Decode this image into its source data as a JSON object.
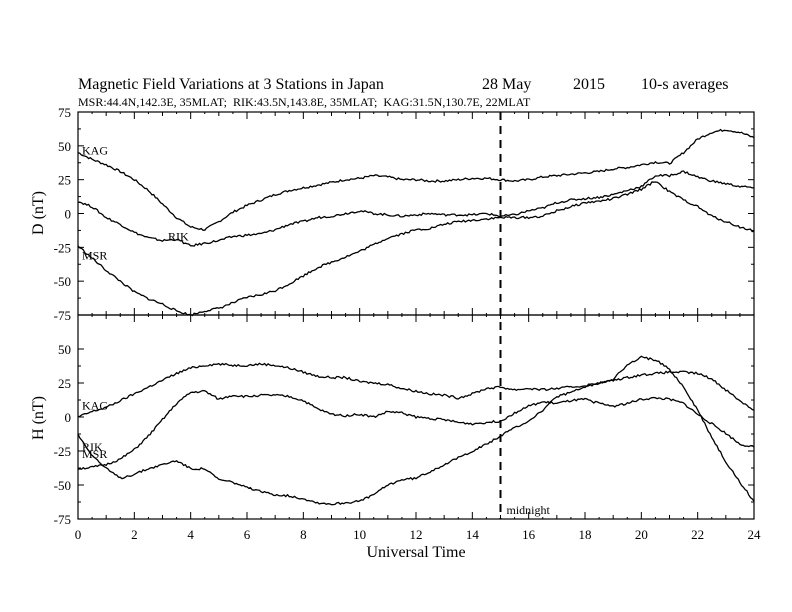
{
  "chart_data": [
    {
      "type": "line",
      "title": "Magnetic Field Variations at 3 Stations in Japan",
      "date_day": "28 May",
      "date_year": "2015",
      "averaging": "10-s averages",
      "subtitle": "MSR:44.4N,142.3E, 35MLAT;  RIK:43.5N,143.8E, 35MLAT;  KAG:31.5N,130.7E, 22MLAT",
      "ylabel": "D (nT)",
      "xlabel": "",
      "xlim": [
        0,
        24
      ],
      "ylim": [
        -75,
        75
      ],
      "yticks": [
        "75",
        "50",
        "25",
        "0",
        "-25",
        "-50",
        "-75"
      ],
      "yticks_values": [
        75,
        50,
        25,
        0,
        -25,
        -50,
        -75
      ],
      "series": [
        {
          "name": "KAG",
          "x": [
            0,
            0.5,
            1,
            1.5,
            2,
            2.5,
            3,
            3.5,
            4,
            4.5,
            5,
            5.5,
            6,
            6.5,
            7,
            7.5,
            8,
            8.5,
            9,
            9.5,
            10,
            10.5,
            11,
            11.5,
            12,
            12.5,
            13,
            13.5,
            14,
            14.5,
            15,
            15.5,
            16,
            16.5,
            17,
            17.5,
            18,
            18.5,
            19,
            19.5,
            20,
            20.5,
            21,
            21.5,
            22,
            22.5,
            23,
            23.5,
            24
          ],
          "y": [
            45,
            40,
            36,
            31,
            25,
            17,
            7,
            -3,
            -10,
            -12,
            -6,
            1,
            6,
            10,
            14,
            17,
            19,
            21,
            23,
            25,
            26,
            28,
            27,
            25,
            25,
            24,
            24,
            25,
            26,
            26,
            25,
            24,
            25,
            27,
            28,
            29,
            30,
            31,
            33,
            34,
            36,
            38,
            37,
            45,
            55,
            60,
            62,
            60,
            56
          ]
        },
        {
          "name": "RIK",
          "x": [
            0,
            0.5,
            1,
            1.5,
            2,
            2.5,
            3,
            3.5,
            4,
            4.5,
            5,
            5.5,
            6,
            6.5,
            7,
            7.5,
            8,
            8.5,
            9,
            9.5,
            10,
            10.5,
            11,
            11.5,
            12,
            12.5,
            13,
            13.5,
            14,
            14.5,
            15,
            15.5,
            16,
            16.5,
            17,
            17.5,
            18,
            18.5,
            19,
            19.5,
            20,
            20.5,
            21,
            21.5,
            22,
            22.5,
            23,
            23.5,
            24
          ],
          "y": [
            9,
            5,
            -3,
            -8,
            -14,
            -18,
            -20,
            -19,
            -24,
            -22,
            -20,
            -17,
            -16,
            -15,
            -12,
            -8,
            -6,
            -3,
            -2,
            0,
            2,
            0,
            -1,
            -2,
            -1,
            0,
            -1,
            -1,
            -1,
            0,
            -2,
            -1,
            2,
            4,
            8,
            10,
            11,
            12,
            14,
            17,
            20,
            28,
            28,
            31,
            27,
            24,
            22,
            20,
            19
          ]
        },
        {
          "name": "MSR",
          "x": [
            0,
            0.5,
            1,
            1.5,
            2,
            2.5,
            3,
            3.5,
            4,
            4.5,
            5,
            5.5,
            6,
            6.5,
            7,
            7.5,
            8,
            8.5,
            9,
            9.5,
            10,
            10.5,
            11,
            11.5,
            12,
            12.5,
            13,
            13.5,
            14,
            14.5,
            15,
            15.5,
            16,
            16.5,
            17,
            17.5,
            18,
            18.5,
            19,
            19.5,
            20,
            20.5,
            21,
            21.5,
            22,
            22.5,
            23,
            23.5,
            24
          ],
          "y": [
            -24,
            -33,
            -42,
            -50,
            -58,
            -63,
            -67,
            -72,
            -75,
            -72,
            -70,
            -66,
            -62,
            -60,
            -57,
            -52,
            -46,
            -40,
            -36,
            -32,
            -28,
            -23,
            -18,
            -15,
            -12,
            -11,
            -8,
            -6,
            -5,
            -4,
            -3,
            -3,
            -3,
            -2,
            2,
            5,
            8,
            9,
            11,
            14,
            18,
            24,
            16,
            10,
            5,
            -2,
            -6,
            -10,
            -13
          ]
        }
      ]
    },
    {
      "type": "line",
      "ylabel": "H (nT)",
      "xlabel": "Universal Time",
      "xlim": [
        0,
        24
      ],
      "ylim": [
        -75,
        75
      ],
      "xticks": [
        "0",
        "2",
        "4",
        "6",
        "8",
        "10",
        "12",
        "14",
        "16",
        "18",
        "20",
        "22",
        "24"
      ],
      "xticks_values": [
        0,
        2,
        4,
        6,
        8,
        10,
        12,
        14,
        16,
        18,
        20,
        22,
        24
      ],
      "yticks": [
        "50",
        "25",
        "0",
        "-25",
        "-50",
        "-75"
      ],
      "yticks_values": [
        50,
        25,
        0,
        -25,
        -50,
        -75
      ],
      "annotation": {
        "text": "midnight",
        "x": 15
      },
      "series": [
        {
          "name": "KAG",
          "x": [
            0,
            0.5,
            1,
            1.5,
            2,
            2.5,
            3,
            3.5,
            4,
            4.5,
            5,
            5.5,
            6,
            6.5,
            7,
            7.5,
            8,
            8.5,
            9,
            9.5,
            10,
            10.5,
            11,
            11.5,
            12,
            12.5,
            13,
            13.5,
            14,
            14.5,
            15,
            15.5,
            16,
            16.5,
            17,
            17.5,
            18,
            18.5,
            19,
            19.5,
            20,
            20.5,
            21,
            21.5,
            22,
            22.5,
            23,
            23.5,
            24
          ],
          "y": [
            0,
            4,
            7,
            12,
            17,
            22,
            27,
            32,
            36,
            38,
            39,
            38,
            38,
            39,
            38,
            36,
            33,
            30,
            29,
            29,
            26,
            25,
            24,
            21,
            19,
            17,
            16,
            14,
            17,
            21,
            22,
            20,
            21,
            20,
            21,
            22,
            23,
            25,
            27,
            29,
            31,
            32,
            33,
            33,
            32,
            28,
            20,
            12,
            5
          ]
        },
        {
          "name": "MSR",
          "x": [
            0,
            0.5,
            1,
            1.5,
            2,
            2.5,
            3,
            3.5,
            4,
            4.5,
            5,
            5.5,
            6,
            6.5,
            7,
            7.5,
            8,
            8.5,
            9,
            9.5,
            10,
            10.5,
            11,
            11.5,
            12,
            12.5,
            13,
            13.5,
            14,
            14.5,
            15,
            15.5,
            16,
            16.5,
            17,
            17.5,
            18,
            18.5,
            19,
            19.5,
            20,
            20.5,
            21,
            21.5,
            22,
            22.5,
            23,
            23.5,
            24
          ],
          "y": [
            -38,
            -37,
            -35,
            -31,
            -24,
            -14,
            -2,
            10,
            18,
            19,
            13,
            16,
            15,
            16,
            16,
            15,
            12,
            6,
            2,
            1,
            2,
            0,
            4,
            3,
            0,
            -1,
            -2,
            -4,
            -5,
            -4,
            -3,
            3,
            8,
            11,
            10,
            12,
            13,
            10,
            8,
            10,
            13,
            14,
            13,
            10,
            2,
            -5,
            -12,
            -20,
            -22
          ]
        },
        {
          "name": "RIK",
          "x": [
            0,
            0.5,
            1,
            1.5,
            2,
            2.5,
            3,
            3.5,
            4,
            4.5,
            5,
            5.5,
            6,
            6.5,
            7,
            7.5,
            8,
            8.5,
            9,
            9.5,
            10,
            10.5,
            11,
            11.5,
            12,
            12.5,
            13,
            13.5,
            14,
            14.5,
            15,
            15.5,
            16,
            16.5,
            17,
            17.5,
            18,
            18.5,
            19,
            19.5,
            20,
            20.5,
            21,
            21.5,
            22,
            22.5,
            23,
            23.5,
            24
          ],
          "y": [
            -13,
            -28,
            -38,
            -45,
            -42,
            -38,
            -35,
            -32,
            -38,
            -38,
            -46,
            -48,
            -52,
            -55,
            -57,
            -58,
            -60,
            -63,
            -64,
            -63,
            -62,
            -57,
            -50,
            -46,
            -45,
            -40,
            -35,
            -30,
            -25,
            -20,
            -14,
            -8,
            -3,
            5,
            15,
            18,
            22,
            25,
            28,
            38,
            44,
            42,
            35,
            22,
            5,
            -15,
            -33,
            -48,
            -62
          ]
        }
      ]
    }
  ]
}
